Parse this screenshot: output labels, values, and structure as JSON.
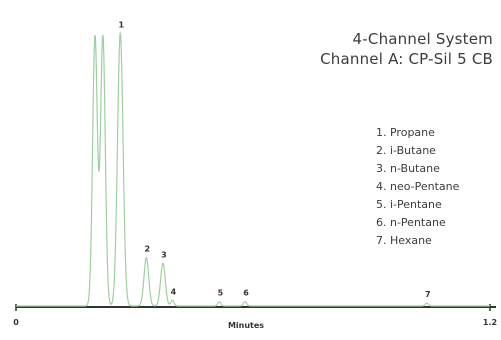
{
  "chart_data": {
    "type": "line",
    "title": [
      "4-Channel System",
      "Channel A: CP-Sil 5 CB"
    ],
    "xlabel": "Minutes",
    "ylabel": "",
    "xlim": [
      0,
      1.2
    ],
    "x_ticks": [
      {
        "value": 0,
        "label": "0"
      },
      {
        "value": 1.2,
        "label": "1.2"
      }
    ],
    "grid": false,
    "legend_position": "right",
    "line_color": "#9fcf9f",
    "series": [
      {
        "peaks": [
          {
            "label": "",
            "time": 0.2,
            "height": 0.95,
            "width": 0.006
          },
          {
            "label": "",
            "time": 0.22,
            "height": 0.95,
            "width": 0.006
          },
          {
            "label": "1",
            "time": 0.264,
            "height": 0.96,
            "width": 0.007
          },
          {
            "label": "2",
            "time": 0.33,
            "height": 0.17,
            "width": 0.006
          },
          {
            "label": "3",
            "time": 0.372,
            "height": 0.15,
            "width": 0.006
          },
          {
            "label": "4",
            "time": 0.396,
            "height": 0.02,
            "width": 0.004
          },
          {
            "label": "5",
            "time": 0.515,
            "height": 0.015,
            "width": 0.004
          },
          {
            "label": "6",
            "time": 0.58,
            "height": 0.015,
            "width": 0.004
          },
          {
            "label": "7",
            "time": 1.04,
            "height": 0.01,
            "width": 0.004
          }
        ]
      }
    ],
    "legend": [
      "1. Propane",
      "2. i-Butane",
      "3. n-Butane",
      "4. neo-Pentane",
      "5. i-Pentane",
      "6. n-Pentane",
      "7. Hexane"
    ]
  }
}
